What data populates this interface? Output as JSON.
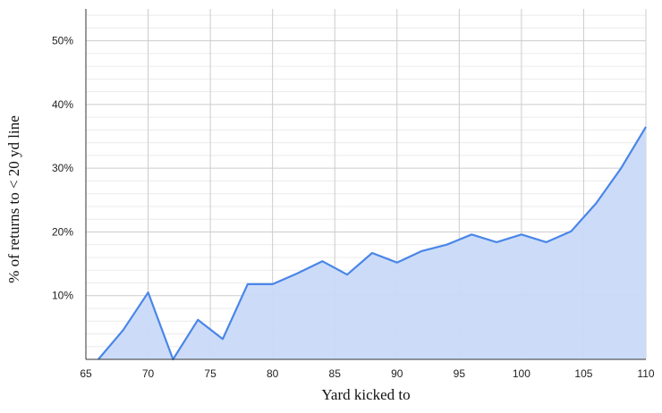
{
  "chart_data": {
    "type": "area",
    "xlabel": "Yard kicked to",
    "ylabel": "% of returns to < 20 yd line",
    "xlim": [
      65,
      110
    ],
    "ylim": [
      0,
      55
    ],
    "x_ticks": [
      "65",
      "70",
      "75",
      "80",
      "85",
      "90",
      "95",
      "100",
      "105",
      "110"
    ],
    "y_ticks": [
      "10%",
      "20%",
      "30%",
      "40%",
      "50%"
    ],
    "series": [
      {
        "x": [
          66,
          68,
          70,
          72,
          74,
          76,
          78,
          80,
          82,
          84,
          86,
          88,
          90,
          92,
          94,
          96,
          98,
          100,
          102,
          104,
          106,
          108,
          110
        ],
        "y": [
          0,
          4.6,
          10.5,
          0,
          6.2,
          3.2,
          11.8,
          11.8,
          13.5,
          15.4,
          13.3,
          16.7,
          15.2,
          17.0,
          18.0,
          19.6,
          18.4,
          19.6,
          18.4,
          20.1,
          24.5,
          30.0,
          36.5
        ]
      }
    ],
    "grid": true,
    "colors": {
      "line": "#4a86e8",
      "fill": "#c9daf8",
      "grid_major": "#cccccc",
      "grid_minor": "#ebebeb",
      "axis": "#333333"
    }
  }
}
